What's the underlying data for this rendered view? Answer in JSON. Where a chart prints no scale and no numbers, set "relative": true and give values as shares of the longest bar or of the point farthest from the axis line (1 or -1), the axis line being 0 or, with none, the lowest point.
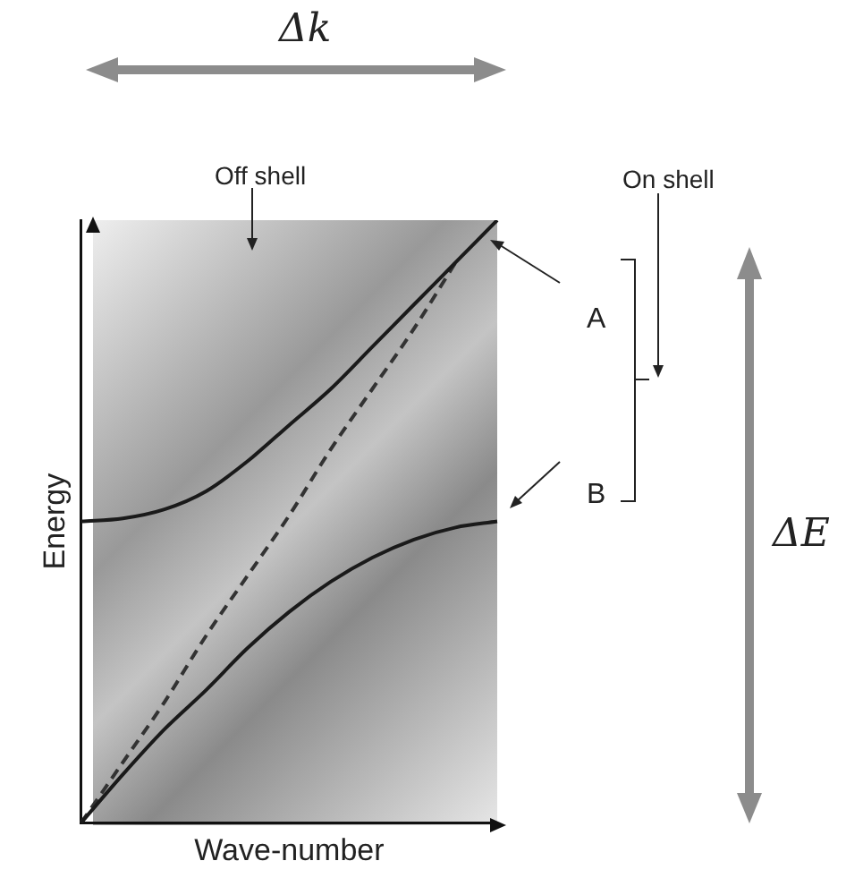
{
  "chart_data": {
    "type": "line",
    "relative": true,
    "xlabel": "Wave-number",
    "ylabel": "Energy",
    "categories": [
      null,
      null,
      null,
      null,
      null,
      null,
      null,
      null,
      null,
      null,
      null
    ],
    "series": [
      {
        "color": "#1a1a1a",
        "line_style": "solid",
        "values": [
          0.5,
          0.505,
          0.52,
          0.55,
          0.6,
          0.66,
          0.72,
          0.79,
          0.86,
          0.93,
          1.0
        ]
      },
      {
        "color": "#1a1a1a",
        "line_style": "solid",
        "values": [
          0,
          0.08,
          0.155,
          0.22,
          0.29,
          0.35,
          0.4,
          0.44,
          0.47,
          0.49,
          0.5
        ]
      },
      {
        "color": "#333333",
        "line_style": "dashed",
        "values": [
          0,
          0.1,
          0.2,
          0.31,
          0.41,
          0.51,
          0.62,
          0.72,
          0.82,
          0.93,
          null
        ]
      }
    ],
    "annotations": [
      "Δk",
      "Off shell",
      "On shell",
      "A",
      "B",
      "ΔE"
    ],
    "grid": false,
    "legend": false,
    "marker": "none"
  }
}
